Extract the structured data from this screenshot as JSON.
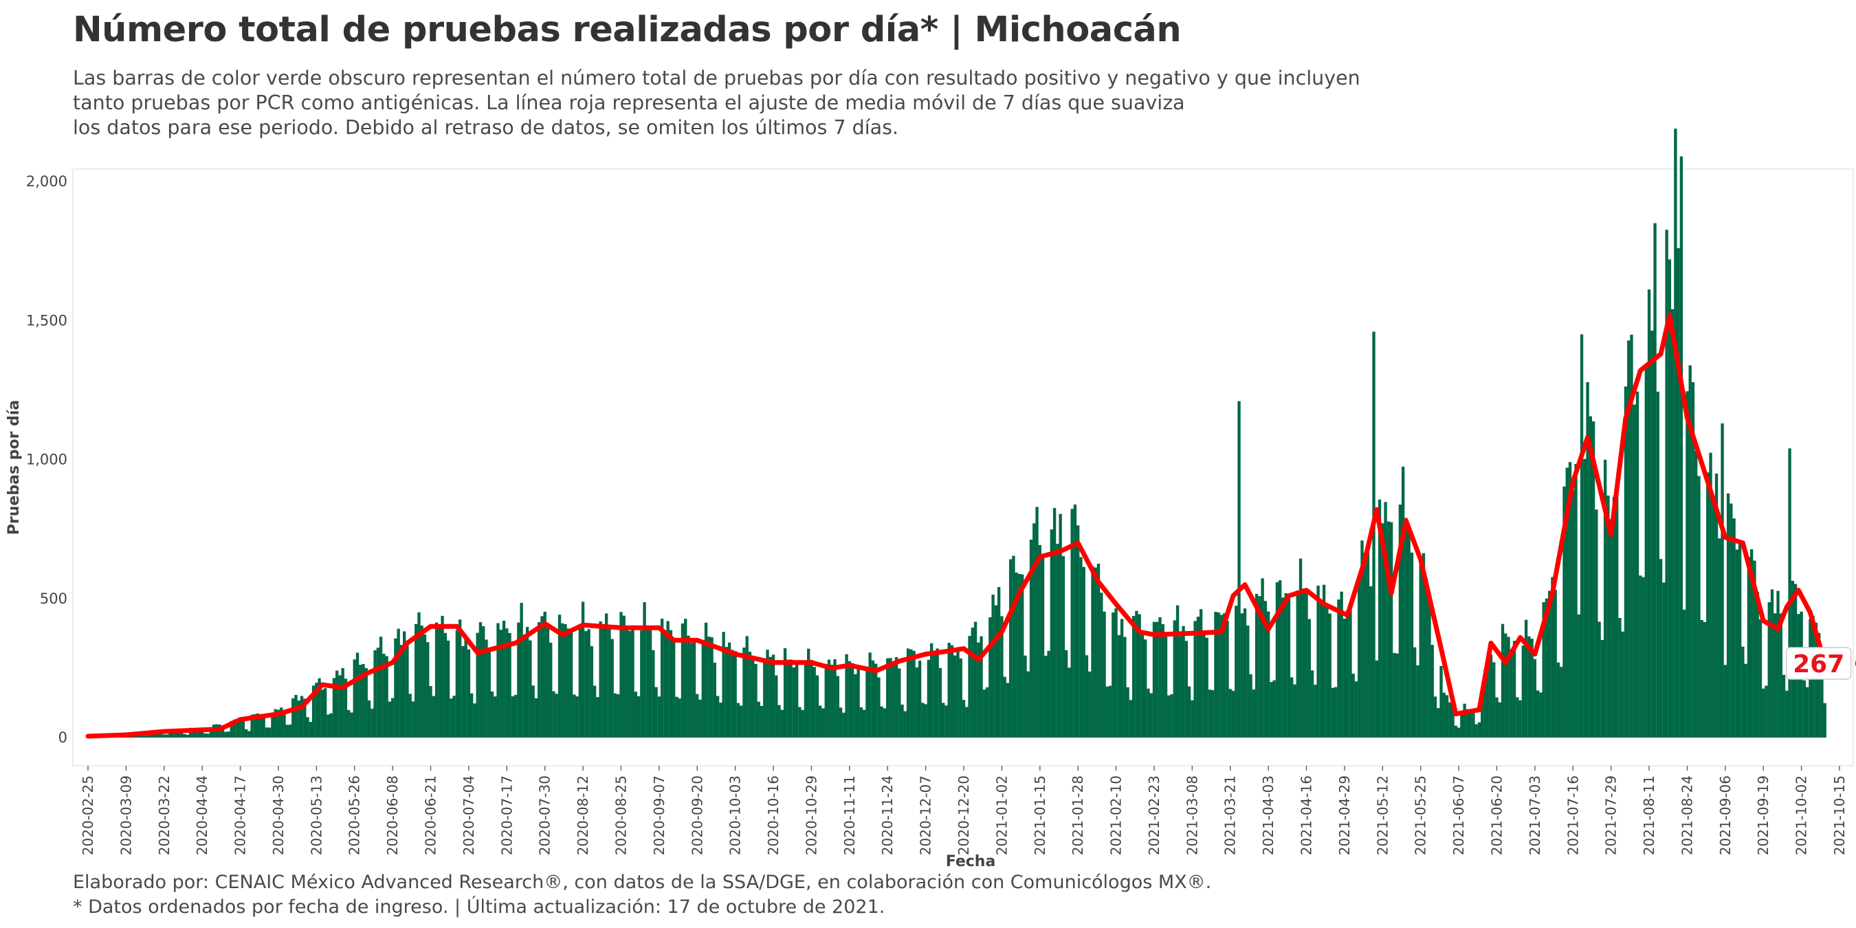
{
  "title": "Número total de pruebas realizadas por día* | Michoacán",
  "subtitle_lines": [
    "Las barras de color verde obscuro representan el número total de pruebas por día con resultado positivo y negativo y que incluyen",
    "tanto pruebas por PCR como antigénicas. La línea roja representa el ajuste de media móvil de 7 días que suaviza",
    "los datos para ese periodo. Debido al retraso de datos, se omiten los últimos 7 días."
  ],
  "caption_lines": [
    "Elaborado por: CENAIC México Advanced Research®, con datos de la SSA/DGE, en colaboración con Comunicólogos MX®.",
    "* Datos ordenados por fecha de ingreso. | Última actualización: 17 de octubre de 2021."
  ],
  "colors": {
    "bars": "#006845",
    "line": "#ff0000",
    "label_text": "#e8141b"
  },
  "chart_data": {
    "type": "bar",
    "xlabel": "Fecha",
    "ylabel": "Pruebas por día",
    "ylim": [
      0,
      2300
    ],
    "y_ticks": [
      0,
      500,
      1000,
      1500,
      2000
    ],
    "y_tick_labels": [
      "0",
      "500",
      "1,000",
      "1,500",
      "2,000"
    ],
    "x_range": [
      "2020-02-25",
      "2021-10-15"
    ],
    "x_ticks": [
      "2020-02-25",
      "2020-03-09",
      "2020-03-22",
      "2020-04-04",
      "2020-04-17",
      "2020-04-30",
      "2020-05-13",
      "2020-05-26",
      "2020-06-08",
      "2020-06-21",
      "2020-07-04",
      "2020-07-17",
      "2020-07-30",
      "2020-08-12",
      "2020-08-25",
      "2020-09-07",
      "2020-09-20",
      "2020-10-03",
      "2020-10-16",
      "2020-10-29",
      "2020-11-11",
      "2020-11-24",
      "2020-12-07",
      "2020-12-20",
      "2021-01-02",
      "2021-01-15",
      "2021-01-28",
      "2021-02-10",
      "2021-02-23",
      "2021-03-08",
      "2021-03-21",
      "2021-04-03",
      "2021-04-16",
      "2021-04-29",
      "2021-05-12",
      "2021-05-25",
      "2021-06-07",
      "2021-06-20",
      "2021-07-03",
      "2021-07-16",
      "2021-07-29",
      "2021-08-11",
      "2021-08-24",
      "2021-09-06",
      "2021-09-19",
      "2021-10-02",
      "2021-10-15"
    ],
    "bars": {
      "name": "Pruebas por día",
      "start_date": "2020-02-25",
      "end_date": "2021-10-10",
      "anchors": [
        [
          "2020-02-25",
          5
        ],
        [
          "2020-03-09",
          12
        ],
        [
          "2020-03-22",
          25
        ],
        [
          "2020-04-04",
          30
        ],
        [
          "2020-04-17",
          60
        ],
        [
          "2020-04-30",
          90
        ],
        [
          "2020-05-13",
          170
        ],
        [
          "2020-05-26",
          240
        ],
        [
          "2020-06-08",
          320
        ],
        [
          "2020-06-21",
          380
        ],
        [
          "2020-07-04",
          330
        ],
        [
          "2020-07-17",
          370
        ],
        [
          "2020-07-30",
          380
        ],
        [
          "2020-08-12",
          370
        ],
        [
          "2020-08-25",
          380
        ],
        [
          "2020-09-07",
          370
        ],
        [
          "2020-09-20",
          340
        ],
        [
          "2020-10-03",
          300
        ],
        [
          "2020-10-16",
          260
        ],
        [
          "2020-10-29",
          250
        ],
        [
          "2020-11-11",
          240
        ],
        [
          "2020-11-24",
          250
        ],
        [
          "2020-12-07",
          280
        ],
        [
          "2020-12-20",
          290
        ],
        [
          "2021-01-02",
          480
        ],
        [
          "2021-01-15",
          700
        ],
        [
          "2021-01-28",
          690
        ],
        [
          "2021-02-10",
          380
        ],
        [
          "2021-02-23",
          380
        ],
        [
          "2021-03-08",
          370
        ],
        [
          "2021-03-21",
          420
        ],
        [
          "2021-04-03",
          480
        ],
        [
          "2021-04-16",
          500
        ],
        [
          "2021-04-29",
          420
        ],
        [
          "2021-05-12",
          740
        ],
        [
          "2021-05-20",
          760
        ],
        [
          "2021-05-25",
          620
        ],
        [
          "2021-06-02",
          150
        ],
        [
          "2021-06-07",
          90
        ],
        [
          "2021-06-13",
          100
        ],
        [
          "2021-06-20",
          330
        ],
        [
          "2021-07-03",
          330
        ],
        [
          "2021-07-10",
          550
        ],
        [
          "2021-07-16",
          950
        ],
        [
          "2021-07-22",
          1050
        ],
        [
          "2021-07-29",
          740
        ],
        [
          "2021-08-05",
          1250
        ],
        [
          "2021-08-11",
          1350
        ],
        [
          "2021-08-18",
          1500
        ],
        [
          "2021-08-24",
          1150
        ],
        [
          "2021-08-31",
          900
        ],
        [
          "2021-09-06",
          720
        ],
        [
          "2021-09-12",
          700
        ],
        [
          "2021-09-19",
          420
        ],
        [
          "2021-09-26",
          480
        ],
        [
          "2021-10-02",
          470
        ],
        [
          "2021-10-10",
          300
        ]
      ],
      "weekly_pattern": [
        1.12,
        1.18,
        1.1,
        1.05,
        0.95,
        0.45,
        0.4
      ],
      "peak_values": [
        [
          "2021-03-24",
          1210
        ],
        [
          "2021-05-09",
          1460
        ],
        [
          "2021-07-19",
          1450
        ],
        [
          "2021-08-13",
          1850
        ],
        [
          "2021-08-20",
          2190
        ],
        [
          "2021-08-21",
          1760
        ],
        [
          "2021-08-22",
          2090
        ],
        [
          "2021-09-05",
          1130
        ],
        [
          "2021-09-28",
          1040
        ]
      ]
    },
    "moving_average": {
      "name": "Media móvil de 7 días",
      "points": [
        [
          "2020-02-25",
          5
        ],
        [
          "2020-03-09",
          10
        ],
        [
          "2020-03-22",
          22
        ],
        [
          "2020-04-04",
          28
        ],
        [
          "2020-04-10",
          30
        ],
        [
          "2020-04-17",
          65
        ],
        [
          "2020-04-30",
          85
        ],
        [
          "2020-05-08",
          110
        ],
        [
          "2020-05-15",
          190
        ],
        [
          "2020-05-22",
          180
        ],
        [
          "2020-05-30",
          230
        ],
        [
          "2020-06-08",
          270
        ],
        [
          "2020-06-13",
          340
        ],
        [
          "2020-06-21",
          400
        ],
        [
          "2020-06-30",
          400
        ],
        [
          "2020-07-07",
          305
        ],
        [
          "2020-07-20",
          340
        ],
        [
          "2020-07-30",
          410
        ],
        [
          "2020-08-05",
          370
        ],
        [
          "2020-08-12",
          405
        ],
        [
          "2020-08-25",
          395
        ],
        [
          "2020-09-07",
          395
        ],
        [
          "2020-09-12",
          350
        ],
        [
          "2020-09-20",
          350
        ],
        [
          "2020-10-03",
          300
        ],
        [
          "2020-10-16",
          270
        ],
        [
          "2020-10-29",
          270
        ],
        [
          "2020-11-05",
          250
        ],
        [
          "2020-11-11",
          260
        ],
        [
          "2020-11-20",
          240
        ],
        [
          "2020-11-28",
          275
        ],
        [
          "2020-12-07",
          300
        ],
        [
          "2020-12-14",
          310
        ],
        [
          "2020-12-20",
          320
        ],
        [
          "2020-12-25",
          280
        ],
        [
          "2021-01-02",
          380
        ],
        [
          "2021-01-08",
          520
        ],
        [
          "2021-01-15",
          650
        ],
        [
          "2021-01-22",
          670
        ],
        [
          "2021-01-28",
          700
        ],
        [
          "2021-02-04",
          560
        ],
        [
          "2021-02-10",
          480
        ],
        [
          "2021-02-18",
          380
        ],
        [
          "2021-02-23",
          370
        ],
        [
          "2021-03-08",
          375
        ],
        [
          "2021-03-18",
          380
        ],
        [
          "2021-03-22",
          510
        ],
        [
          "2021-03-26",
          550
        ],
        [
          "2021-04-03",
          390
        ],
        [
          "2021-04-10",
          510
        ],
        [
          "2021-04-16",
          530
        ],
        [
          "2021-04-22",
          480
        ],
        [
          "2021-04-30",
          440
        ],
        [
          "2021-05-06",
          640
        ],
        [
          "2021-05-10",
          820
        ],
        [
          "2021-05-15",
          520
        ],
        [
          "2021-05-20",
          780
        ],
        [
          "2021-05-25",
          640
        ],
        [
          "2021-06-01",
          320
        ],
        [
          "2021-06-06",
          85
        ],
        [
          "2021-06-14",
          100
        ],
        [
          "2021-06-18",
          340
        ],
        [
          "2021-06-23",
          270
        ],
        [
          "2021-06-28",
          360
        ],
        [
          "2021-07-03",
          300
        ],
        [
          "2021-07-09",
          520
        ],
        [
          "2021-07-16",
          920
        ],
        [
          "2021-07-21",
          1080
        ],
        [
          "2021-07-29",
          730
        ],
        [
          "2021-08-03",
          1150
        ],
        [
          "2021-08-08",
          1320
        ],
        [
          "2021-08-15",
          1380
        ],
        [
          "2021-08-18",
          1520
        ],
        [
          "2021-08-24",
          1150
        ],
        [
          "2021-08-31",
          920
        ],
        [
          "2021-09-06",
          720
        ],
        [
          "2021-09-12",
          700
        ],
        [
          "2021-09-19",
          420
        ],
        [
          "2021-09-24",
          390
        ],
        [
          "2021-09-27",
          470
        ],
        [
          "2021-10-01",
          530
        ],
        [
          "2021-10-05",
          450
        ],
        [
          "2021-10-10",
          267
        ]
      ]
    },
    "end_label": {
      "date": "2021-10-10",
      "value": 267,
      "text": "267"
    }
  }
}
